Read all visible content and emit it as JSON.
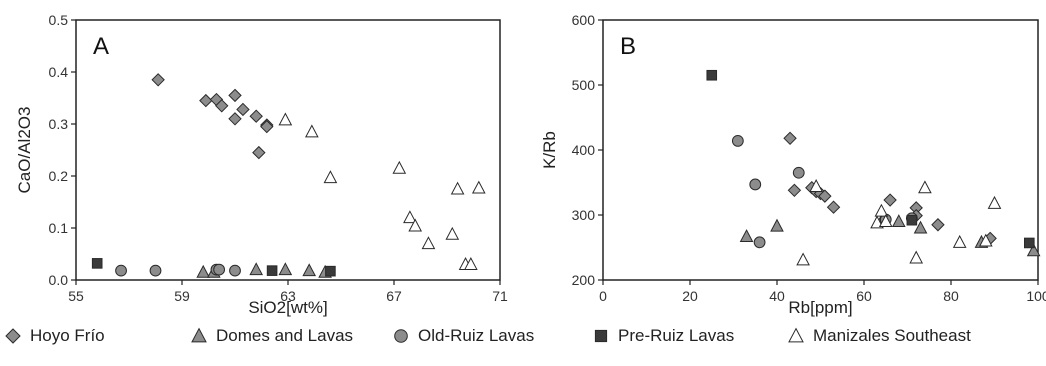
{
  "legend": [
    {
      "key": "hoyo",
      "label": "Hoyo Frío",
      "marker": "diamond",
      "fill": "#8c8c8c"
    },
    {
      "key": "domes",
      "label": "Domes and Lavas",
      "marker": "triangle",
      "fill": "#8c8c8c"
    },
    {
      "key": "oldruiz",
      "label": "Old-Ruiz Lavas",
      "marker": "circle",
      "fill": "#8c8c8c"
    },
    {
      "key": "preruiz",
      "label": "Pre-Ruiz Lavas",
      "marker": "square",
      "fill": "#3a3a3a"
    },
    {
      "key": "manizales",
      "label": "Manizales Southeast",
      "marker": "triangle-open",
      "fill": "#ffffff"
    }
  ],
  "chart_data": [
    {
      "type": "scatter",
      "panel_letter": "A",
      "xlabel": "SiO2[wt%]",
      "ylabel": "CaO/Al2O3",
      "xlim": [
        55,
        71
      ],
      "ylim": [
        0,
        0.5
      ],
      "xticks": [
        55,
        59,
        63,
        67,
        71
      ],
      "yticks": [
        "0.0",
        "0.1",
        "0.2",
        "0.3",
        "0.4",
        "0.5"
      ],
      "grid": false,
      "series": [
        {
          "name": "Hoyo Frío",
          "marker": "diamond",
          "points": [
            [
              58.1,
              0.385
            ],
            [
              59.9,
              0.345
            ],
            [
              60.3,
              0.347
            ],
            [
              60.5,
              0.335
            ],
            [
              61.0,
              0.355
            ],
            [
              61.0,
              0.31
            ],
            [
              61.3,
              0.328
            ],
            [
              61.8,
              0.315
            ],
            [
              62.2,
              0.298
            ],
            [
              62.2,
              0.295
            ],
            [
              61.9,
              0.245
            ]
          ]
        },
        {
          "name": "Domes and Lavas",
          "marker": "triangle",
          "points": [
            [
              59.8,
              0.015
            ],
            [
              60.2,
              0.015
            ],
            [
              61.8,
              0.02
            ],
            [
              62.9,
              0.02
            ],
            [
              63.8,
              0.018
            ],
            [
              64.4,
              0.015
            ]
          ]
        },
        {
          "name": "Old-Ruiz Lavas",
          "marker": "circle",
          "points": [
            [
              56.7,
              0.018
            ],
            [
              58.0,
              0.018
            ],
            [
              60.3,
              0.02
            ],
            [
              60.4,
              0.02
            ],
            [
              61.0,
              0.018
            ]
          ]
        },
        {
          "name": "Pre-Ruiz Lavas",
          "marker": "square",
          "points": [
            [
              55.8,
              0.032
            ],
            [
              62.4,
              0.018
            ],
            [
              64.6,
              0.017
            ]
          ]
        },
        {
          "name": "Manizales Southeast",
          "marker": "triangle-open",
          "points": [
            [
              62.9,
              0.308
            ],
            [
              63.9,
              0.285
            ],
            [
              64.6,
              0.197
            ],
            [
              67.2,
              0.215
            ],
            [
              67.6,
              0.12
            ],
            [
              67.8,
              0.104
            ],
            [
              68.3,
              0.07
            ],
            [
              69.2,
              0.088
            ],
            [
              69.4,
              0.175
            ],
            [
              69.7,
              0.03
            ],
            [
              69.9,
              0.03
            ],
            [
              70.2,
              0.177
            ]
          ]
        }
      ]
    },
    {
      "type": "scatter",
      "panel_letter": "B",
      "xlabel": "Rb[ppm]",
      "ylabel": "K/Rb",
      "xlim": [
        0,
        100
      ],
      "ylim": [
        200,
        600
      ],
      "xticks": [
        0,
        20,
        40,
        60,
        80,
        100
      ],
      "yticks": [
        "200",
        "300",
        "400",
        "500",
        "600"
      ],
      "grid": false,
      "series": [
        {
          "name": "Hoyo Frío",
          "marker": "diamond",
          "points": [
            [
              43,
              418
            ],
            [
              44,
              338
            ],
            [
              48,
              342
            ],
            [
              49,
              336
            ],
            [
              50,
              333
            ],
            [
              51,
              329
            ],
            [
              53,
              312
            ],
            [
              66,
              323
            ],
            [
              72,
              311
            ],
            [
              72,
              299
            ],
            [
              77,
              285
            ],
            [
              89,
              264
            ]
          ]
        },
        {
          "name": "Domes and Lavas",
          "marker": "triangle",
          "points": [
            [
              33,
              267
            ],
            [
              40,
              283
            ],
            [
              64,
              290
            ],
            [
              68,
              290
            ],
            [
              73,
              280
            ],
            [
              87,
              258
            ],
            [
              99,
              245
            ]
          ]
        },
        {
          "name": "Old-Ruiz Lavas",
          "marker": "circle",
          "points": [
            [
              31,
              414
            ],
            [
              35,
              347
            ],
            [
              36,
              258
            ],
            [
              45,
              365
            ],
            [
              65,
              293
            ],
            [
              71,
              295
            ]
          ]
        },
        {
          "name": "Pre-Ruiz Lavas",
          "marker": "square",
          "points": [
            [
              25,
              515
            ],
            [
              71,
              292
            ],
            [
              98,
              257
            ]
          ]
        },
        {
          "name": "Manizales Southeast",
          "marker": "triangle-open",
          "points": [
            [
              46,
              231
            ],
            [
              49,
              344
            ],
            [
              63,
              288
            ],
            [
              64,
              306
            ],
            [
              65,
              290
            ],
            [
              72,
              234
            ],
            [
              74,
              342
            ],
            [
              82,
              258
            ],
            [
              88,
              260
            ],
            [
              90,
              318
            ]
          ]
        }
      ]
    }
  ]
}
